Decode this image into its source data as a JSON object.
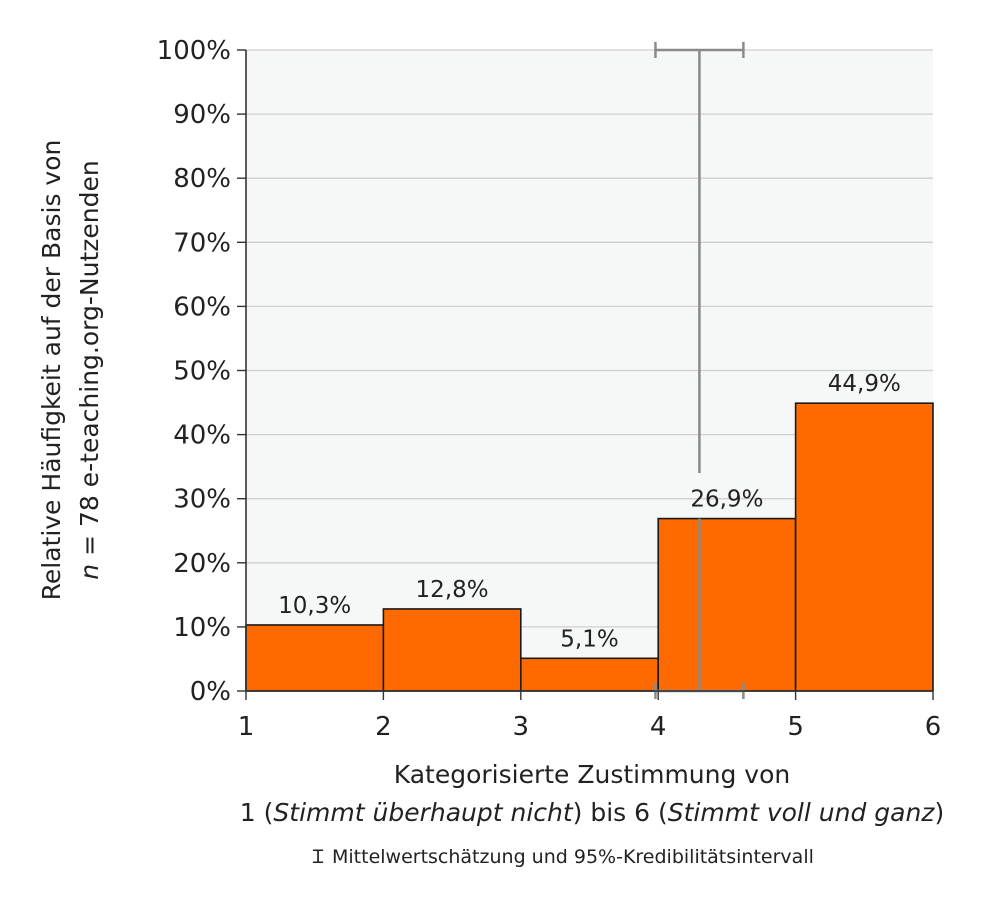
{
  "chart_data": {
    "type": "bar",
    "bins": [
      {
        "from": 1,
        "to": 2,
        "value": 10.3,
        "label": "10,3%"
      },
      {
        "from": 2,
        "to": 3,
        "value": 12.8,
        "label": "12,8%"
      },
      {
        "from": 3,
        "to": 4,
        "value": 5.1,
        "label": "5,1%"
      },
      {
        "from": 4,
        "to": 5,
        "value": 26.9,
        "label": "26,9%"
      },
      {
        "from": 5,
        "to": 6,
        "value": 44.9,
        "label": "44,9%"
      }
    ],
    "xlim": [
      1,
      6
    ],
    "ylim": [
      0,
      100
    ],
    "x_ticks": [
      "1",
      "2",
      "3",
      "4",
      "5",
      "6"
    ],
    "x_tick_values": [
      1,
      2,
      3,
      4,
      5,
      6
    ],
    "y_ticks": [
      "0%",
      "10%",
      "20%",
      "30%",
      "40%",
      "50%",
      "60%",
      "70%",
      "80%",
      "90%",
      "100%"
    ],
    "y_tick_values": [
      0,
      10,
      20,
      30,
      40,
      50,
      60,
      70,
      80,
      90,
      100
    ],
    "ylabel_line1": "Relative Häufigkeit auf der Basis von",
    "ylabel_line2_n": "n",
    "ylabel_line2_rest": " = 78 e-teaching.org-Nutzenden",
    "xlabel_line1": "Kategorisierte Zustimmung von",
    "xlabel_line2": {
      "p1": "1 (",
      "italic1": "Stimmt überhaupt nicht",
      "p2": ") bis 6 (",
      "italic2": "Stimmt voll und ganz",
      "p3": ")"
    },
    "error_bars": [
      {
        "name": "mean-estimate-x",
        "x": 4.3,
        "x_low": 3.98,
        "x_high": 4.62,
        "y_pct": 0
      },
      {
        "name": "mean-estimate-y",
        "x": 4.3,
        "y": 34,
        "y_low": 34,
        "y_high": 100,
        "x_cap_low": 3.98,
        "x_cap_high": 4.62
      }
    ],
    "legend_note": "Mittelwertschätzung und 95%-Kredibilitätsintervall",
    "legend_symbol": "Ɪ",
    "grid": true,
    "colors": {
      "bar": "#ff6a00",
      "bar_edge": "#1a1a1a",
      "plot_bg": "#f6f7f7",
      "grid": "#cfcfcf",
      "error_bar": "#8a8a8a",
      "axis": "#333333"
    }
  }
}
